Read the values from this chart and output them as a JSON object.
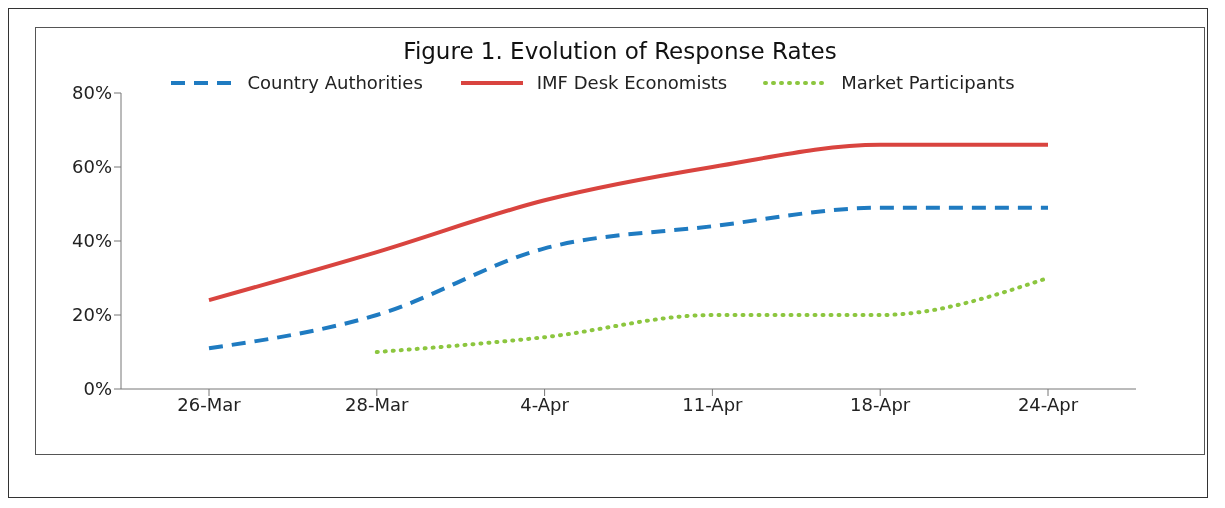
{
  "chart_data": {
    "type": "line",
    "title": "Figure 1. Evolution of Response Rates",
    "categories": [
      "26-Mar",
      "28-Mar",
      "4-Apr",
      "11-Apr",
      "18-Apr",
      "24-Apr"
    ],
    "series": [
      {
        "name": "Country Authorities",
        "color": "#1f7bc1",
        "line_style": "dashed",
        "values": [
          11,
          20,
          38,
          44,
          49,
          49
        ]
      },
      {
        "name": "IMF Desk Economists",
        "color": "#d9443f",
        "line_style": "solid",
        "values": [
          24,
          37,
          51,
          60,
          66,
          66
        ]
      },
      {
        "name": "Market Participants",
        "color": "#8cc63f",
        "line_style": "dotted",
        "values": [
          null,
          10,
          14,
          20,
          20,
          30
        ]
      }
    ],
    "ylim": [
      0,
      80
    ],
    "yticks": [
      {
        "value": 0,
        "label": "0%"
      },
      {
        "value": 20,
        "label": "20%"
      },
      {
        "value": 40,
        "label": "40%"
      },
      {
        "value": 60,
        "label": "60%"
      },
      {
        "value": 80,
        "label": "80%"
      }
    ],
    "grid": false,
    "legend": "top",
    "marker": "none"
  }
}
